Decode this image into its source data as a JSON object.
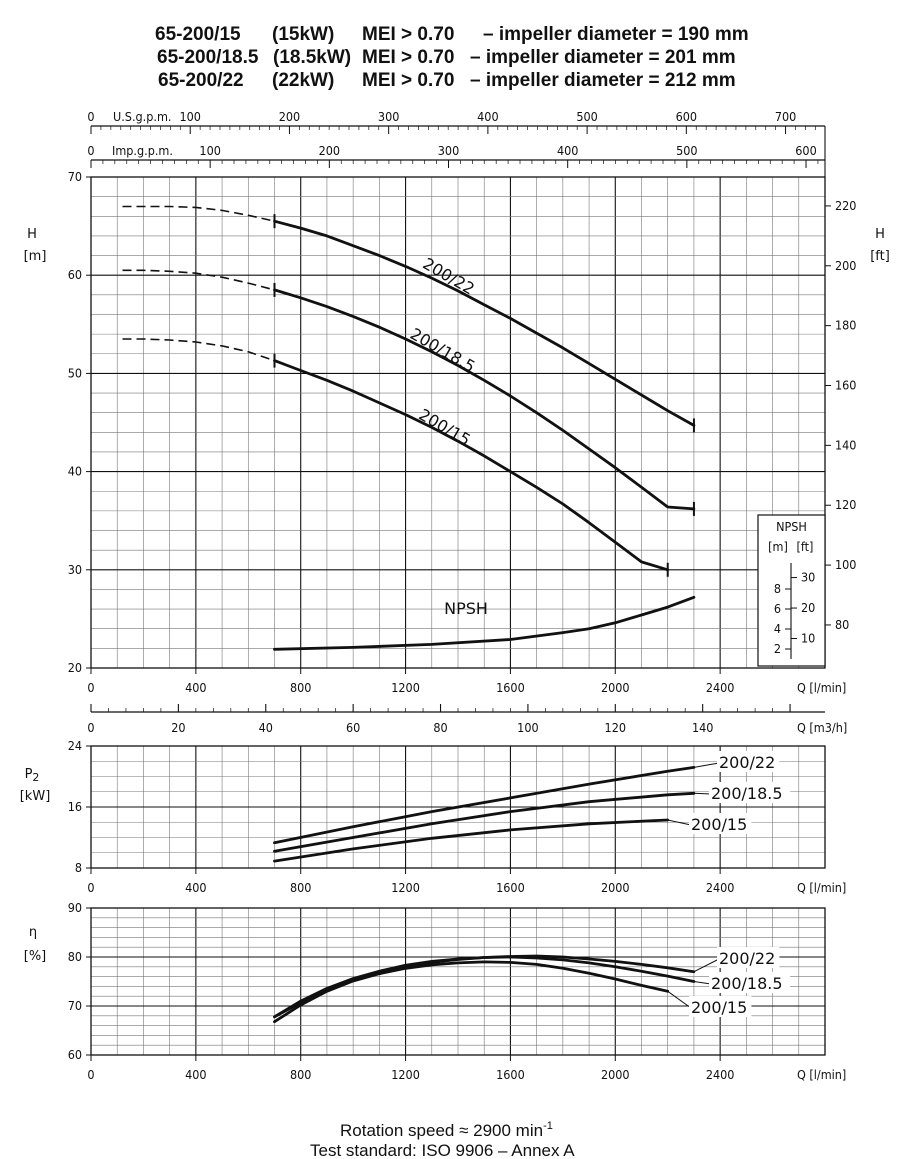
{
  "header": {
    "lines": [
      [
        "65-200/15",
        "(15kW)",
        "MEI > 0.70",
        "– impeller diameter = 190 mm"
      ],
      [
        "65-200/18.5",
        "(18.5kW)",
        "MEI > 0.70",
        "– impeller diameter = 201 mm"
      ],
      [
        "65-200/22",
        "(22kW)",
        "MEI > 0.70",
        "– impeller diameter = 212 mm"
      ]
    ]
  },
  "footer": {
    "speed_text": "Rotation speed ≈ 2900 min",
    "speed_sup": "-1",
    "standard": "Test standard: ISO 9906 – Annex A"
  },
  "chart_data": [
    {
      "type": "line",
      "id": "head",
      "ylabel": "H",
      "yunit": "[m]",
      "y2label": "H",
      "y2unit": "[ft]",
      "xlabel": "Q [l/min]",
      "xlim": [
        0,
        2800
      ],
      "ylim": [
        20,
        70
      ],
      "x_ticks": [
        0,
        400,
        800,
        1200,
        1600,
        2000,
        2400
      ],
      "y_ticks": [
        20,
        30,
        40,
        50,
        60,
        70
      ],
      "y2_ticks": [
        80,
        100,
        120,
        140,
        160,
        180,
        200,
        220
      ],
      "top_axes": [
        {
          "label": "U.S.g.p.m.",
          "ticks": [
            0,
            100,
            200,
            300,
            400,
            500,
            600,
            700
          ],
          "factor": 3.785
        },
        {
          "label": "Imp.g.p.m.",
          "ticks": [
            0,
            100,
            200,
            300,
            400,
            500,
            600
          ],
          "factor": 4.546
        }
      ],
      "grid": true,
      "series": [
        {
          "name": "200/22",
          "dashed_x": [
            120,
            200,
            300,
            400,
            500,
            600,
            700
          ],
          "dashed_y": [
            67.0,
            67.0,
            67.0,
            66.9,
            66.6,
            66.1,
            65.5
          ],
          "x": [
            700,
            800,
            900,
            1000,
            1100,
            1200,
            1300,
            1400,
            1500,
            1600,
            1700,
            1800,
            1900,
            2000,
            2100,
            2200,
            2300
          ],
          "y": [
            65.5,
            64.8,
            64.0,
            63.0,
            62.0,
            60.9,
            59.7,
            58.4,
            57.0,
            55.6,
            54.1,
            52.6,
            51.0,
            49.4,
            47.8,
            46.2,
            44.7
          ]
        },
        {
          "name": "200/18.5",
          "dashed_x": [
            120,
            200,
            300,
            400,
            500,
            600,
            700
          ],
          "dashed_y": [
            60.5,
            60.5,
            60.4,
            60.2,
            59.8,
            59.2,
            58.5
          ],
          "x": [
            700,
            800,
            900,
            1000,
            1100,
            1200,
            1300,
            1400,
            1500,
            1600,
            1700,
            1800,
            1900,
            2000,
            2100,
            2200,
            2300
          ],
          "y": [
            58.5,
            57.7,
            56.8,
            55.8,
            54.7,
            53.5,
            52.2,
            50.8,
            49.3,
            47.7,
            46.0,
            44.2,
            42.3,
            40.4,
            38.4,
            36.4,
            36.2
          ]
        },
        {
          "name": "200/15",
          "dashed_x": [
            120,
            200,
            300,
            400,
            500,
            600,
            700
          ],
          "dashed_y": [
            53.5,
            53.5,
            53.4,
            53.2,
            52.8,
            52.2,
            51.3
          ],
          "x": [
            700,
            800,
            900,
            1000,
            1100,
            1200,
            1300,
            1400,
            1500,
            1600,
            1700,
            1800,
            1900,
            2000,
            2100,
            2200
          ],
          "y": [
            51.3,
            50.3,
            49.3,
            48.2,
            47.0,
            45.8,
            44.5,
            43.1,
            41.6,
            40.0,
            38.4,
            36.7,
            34.8,
            32.8,
            30.8,
            30.0
          ]
        },
        {
          "name": "NPSH",
          "x": [
            700,
            1000,
            1300,
            1600,
            1800,
            1900,
            2000,
            2100,
            2200,
            2300
          ],
          "y": [
            21.9,
            22.1,
            22.4,
            22.9,
            23.6,
            24.0,
            24.6,
            25.4,
            26.2,
            27.2
          ]
        }
      ],
      "npsh_inset": {
        "title": "NPSH",
        "units": [
          "[m]",
          "[ft]"
        ],
        "m_ticks": [
          2,
          4,
          6,
          8
        ],
        "ft_ticks": [
          10,
          20,
          30
        ]
      },
      "second_x_axis": {
        "label": "Q [m3/h]",
        "ticks": [
          0,
          20,
          40,
          60,
          80,
          100,
          120,
          140
        ],
        "factor": 16.667
      }
    },
    {
      "type": "line",
      "id": "power",
      "ylabel": "P2",
      "yunit": "[kW]",
      "xlabel": "Q [l/min]",
      "xlim": [
        0,
        2800
      ],
      "ylim": [
        8,
        24
      ],
      "x_ticks": [
        0,
        400,
        800,
        1200,
        1600,
        2000,
        2400
      ],
      "y_ticks": [
        8,
        16,
        24
      ],
      "grid": true,
      "series": [
        {
          "name": "200/22",
          "x": [
            700,
            1000,
            1300,
            1600,
            1900,
            2200,
            2300
          ],
          "y": [
            11.3,
            13.4,
            15.4,
            17.2,
            19.0,
            20.7,
            21.2
          ]
        },
        {
          "name": "200/18.5",
          "x": [
            700,
            1000,
            1300,
            1600,
            1900,
            2200,
            2300
          ],
          "y": [
            10.2,
            12.0,
            13.8,
            15.4,
            16.7,
            17.6,
            17.8
          ]
        },
        {
          "name": "200/15",
          "x": [
            700,
            1000,
            1300,
            1600,
            1900,
            2200
          ],
          "y": [
            8.9,
            10.5,
            11.9,
            13.0,
            13.8,
            14.3
          ]
        }
      ]
    },
    {
      "type": "line",
      "id": "efficiency",
      "ylabel": "η",
      "yunit": "[%]",
      "xlabel": "Q [l/min]",
      "xlim": [
        0,
        2800
      ],
      "ylim": [
        60,
        90
      ],
      "x_ticks": [
        0,
        400,
        800,
        1200,
        1600,
        2000,
        2400
      ],
      "y_ticks": [
        60,
        70,
        80,
        90
      ],
      "grid": true,
      "series": [
        {
          "name": "200/22",
          "x": [
            700,
            800,
            900,
            1000,
            1100,
            1200,
            1300,
            1400,
            1500,
            1600,
            1700,
            1800,
            1900,
            2000,
            2100,
            2200,
            2300
          ],
          "y": [
            67.8,
            70.7,
            73.2,
            75.2,
            76.8,
            78.0,
            78.9,
            79.5,
            79.9,
            80.1,
            80.2,
            80.0,
            79.6,
            79.1,
            78.5,
            77.8,
            77.0
          ]
        },
        {
          "name": "200/18.5",
          "x": [
            700,
            800,
            900,
            1000,
            1100,
            1200,
            1300,
            1400,
            1500,
            1600,
            1700,
            1800,
            1900,
            2000,
            2100,
            2200,
            2300
          ],
          "y": [
            67.8,
            71.0,
            73.6,
            75.6,
            77.1,
            78.3,
            79.1,
            79.6,
            79.9,
            80.0,
            79.8,
            79.4,
            78.8,
            78.0,
            77.1,
            76.1,
            75.0
          ]
        },
        {
          "name": "200/15",
          "x": [
            700,
            800,
            900,
            1000,
            1100,
            1200,
            1300,
            1400,
            1500,
            1600,
            1700,
            1800,
            1900,
            2000,
            2100,
            2200
          ],
          "y": [
            66.8,
            70.2,
            73.0,
            75.1,
            76.6,
            77.7,
            78.4,
            78.8,
            79.0,
            78.9,
            78.5,
            77.7,
            76.7,
            75.5,
            74.2,
            73.0
          ]
        }
      ]
    }
  ]
}
